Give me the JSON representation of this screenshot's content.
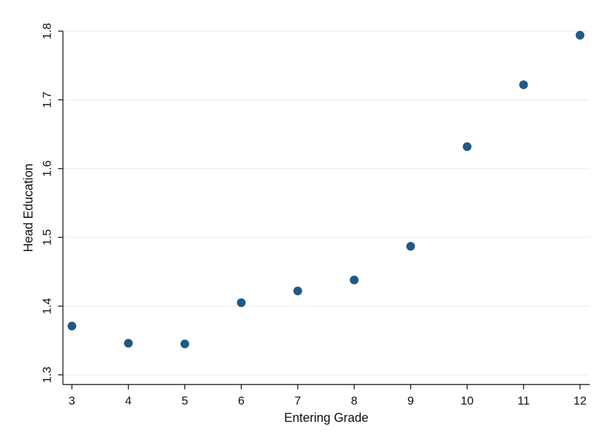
{
  "chart_data": {
    "type": "scatter",
    "title": "",
    "xlabel": "Entering Grade",
    "ylabel": "Head Education",
    "x": [
      3,
      4,
      5,
      6,
      7,
      8,
      9,
      10,
      11,
      12
    ],
    "y": [
      1.371,
      1.346,
      1.345,
      1.405,
      1.422,
      1.438,
      1.487,
      1.632,
      1.722,
      1.794
    ],
    "xticks": [
      "3",
      "4",
      "5",
      "6",
      "7",
      "8",
      "9",
      "10",
      "11",
      "12"
    ],
    "yticks": [
      "1.3",
      "1.4",
      "1.5",
      "1.6",
      "1.7",
      "1.8"
    ],
    "xlim": [
      3,
      12
    ],
    "ylim": [
      1.3,
      1.8
    ],
    "grid": true,
    "marker_color": "#1f5a85",
    "grid_color": "#e6ecef"
  }
}
